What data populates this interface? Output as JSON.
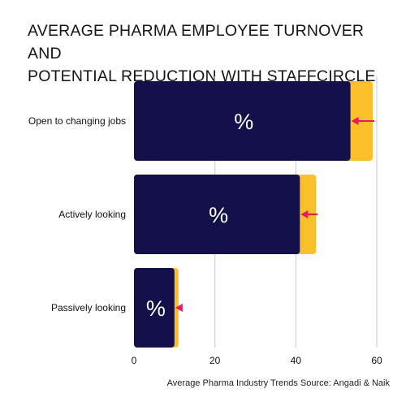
{
  "header": {
    "title_line1": "AVERAGE PHARMA EMPLOYEE TURNOVER AND",
    "title_line2": "POTENTIAL REDUCTION WITH STAFFCIRCLE"
  },
  "footer": {
    "source": "Average Pharma Industry Trends Source: Angadi & Naik"
  },
  "colors": {
    "current": "#13104a",
    "potential": "#fbbf2c",
    "arrow": "#e8195f",
    "grid": "#c8c8c8"
  },
  "chart_data": {
    "type": "bar",
    "orientation": "horizontal",
    "categories": [
      "Open to changing jobs",
      "Actively looking",
      "Passively looking"
    ],
    "series": [
      {
        "values": [
          59,
          45,
          11
        ]
      },
      {
        "values": [
          53.5,
          41,
          10
        ]
      }
    ],
    "bar_labels": [
      "%",
      "%",
      "%"
    ],
    "reduction_arrows": true,
    "xlim": [
      0,
      60
    ],
    "xticks": [
      0,
      20,
      40,
      60
    ],
    "grid": true
  }
}
